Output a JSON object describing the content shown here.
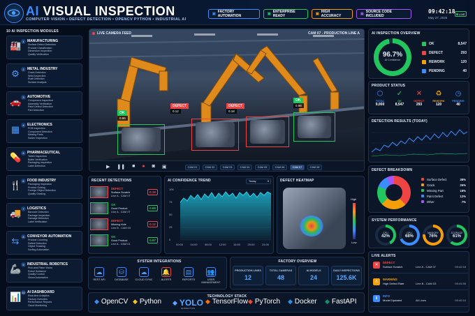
{
  "header": {
    "title_prefix": "AI",
    "title_main": "VISUAL INSPECTION",
    "subtitle": "COMPUTER VISION  •  DEFECT DETECTION  •  OPENCV PYTHON  •  INDUSTRIAL AI",
    "tags": [
      {
        "label": "FACTORY AUTOMATION",
        "color": "#3b8dff"
      },
      {
        "label": "ENTERPRISE READY",
        "color": "#22c55e"
      },
      {
        "label": "HIGH ACCURACY",
        "color": "#f59e0b"
      },
      {
        "label": "SOURCE CODE INCLUDED",
        "color": "#a855f7"
      }
    ],
    "time": "09:42:18",
    "date": "May 27, 2025",
    "live": "LIVE"
  },
  "modules": {
    "title": "10 AI INSPECTION MODULES",
    "items": [
      {
        "num": "1",
        "name": "MANUFACTURING",
        "icon": "factory-icon",
        "items": [
          "Surface Defect Detection",
          "Product Classification",
          "Dimension Inspection",
          "Quality Verification"
        ]
      },
      {
        "num": "2",
        "name": "METAL INDUSTRY",
        "icon": "metal-icon",
        "items": [
          "Crack Detection",
          "Weld Inspection",
          "Rust Detection",
          "Surface Analysis"
        ]
      },
      {
        "num": "3",
        "name": "AUTOMOTIVE",
        "icon": "car-icon",
        "items": [
          "Component Inspection",
          "Assembly Verification",
          "Paint Defect Detection",
          "Part Detection"
        ]
      },
      {
        "num": "4",
        "name": "ELECTRONICS",
        "icon": "chip-icon",
        "items": [
          "PCB Inspection",
          "Component Detection",
          "Missing Parts",
          "Solder Inspection"
        ]
      },
      {
        "num": "5",
        "name": "PHARMACEUTICAL",
        "icon": "pill-icon",
        "items": [
          "Tablet Inspection",
          "Bottle Verification",
          "Packaging Inspection",
          "Label Detection"
        ]
      },
      {
        "num": "6",
        "name": "FOOD INDUSTRY",
        "icon": "food-icon",
        "items": [
          "Packaging Inspection",
          "Product Sorting",
          "Foreign Object Detection",
          "Quality Grading"
        ]
      },
      {
        "num": "7",
        "name": "LOGISTICS",
        "icon": "truck-icon",
        "items": [
          "Barcode Detection",
          "Package Inspection",
          "Damage Detection",
          "Label Verification"
        ]
      },
      {
        "num": "8",
        "name": "CONVEYOR AUTOMATION",
        "icon": "conveyor-icon",
        "items": [
          "Product Counting",
          "Defect Detection",
          "Object Tracking",
          "Sorting Automation"
        ]
      },
      {
        "num": "9",
        "name": "INDUSTRIAL ROBOTICS",
        "icon": "robot-arm-icon",
        "items": [
          "Pick-and-Place Vision",
          "Robot Guidance",
          "Quality Control",
          "Vision Automation"
        ]
      },
      {
        "num": "10",
        "name": "AI DASHBOARD",
        "icon": "dashboard-icon",
        "items": [
          "Real-time Analytics",
          "Factory Overview",
          "Performance Reports",
          "Cloud Monitoring"
        ]
      }
    ]
  },
  "camera": {
    "title": "LIVE CAMERA FEED",
    "cam_label": "CAM 07 - PRODUCTION LINE A",
    "detections": [
      {
        "label": "OK",
        "conf": "0.96",
        "color": "#22c55e"
      },
      {
        "label": "DEFECT",
        "conf": "0.12",
        "color": "#ef4444"
      },
      {
        "label": "DEFECT",
        "conf": "0.18",
        "color": "#ef4444"
      },
      {
        "label": "OK",
        "conf": "0.98",
        "color": "#22c55e"
      }
    ],
    "tabs": [
      "CAM 01",
      "CAM 02",
      "CAM 03",
      "CAM 04",
      "CAM 05",
      "CAM 06",
      "CAM 07",
      "CAM 08"
    ],
    "selected_tab": "CAM 07"
  },
  "overview": {
    "title": "AI INSPECTION OVERVIEW",
    "percent": "96.7%",
    "percent_label": "AI Confidence",
    "rows": [
      {
        "label": "OK",
        "value": "8,547",
        "color": "#22c55e"
      },
      {
        "label": "DEFECT",
        "value": "293",
        "color": "#ef4444"
      },
      {
        "label": "REWORK",
        "value": "120",
        "color": "#f59e0b"
      },
      {
        "label": "PENDING",
        "value": "40",
        "color": "#3b8dff"
      }
    ]
  },
  "product_status": {
    "title": "PRODUCT STATUS",
    "items": [
      {
        "label": "TOTAL",
        "value": "9,000",
        "color": "#3b8dff",
        "icon": "cube-icon"
      },
      {
        "label": "OK",
        "value": "8,547",
        "color": "#22c55e",
        "icon": "check-icon"
      },
      {
        "label": "DEFECT",
        "value": "293",
        "color": "#ef4444",
        "icon": "x-icon"
      },
      {
        "label": "REWORK",
        "value": "120",
        "color": "#f59e0b",
        "icon": "recycle-icon"
      },
      {
        "label": "PENDING",
        "value": "40",
        "color": "#3b8dff",
        "icon": "clock-icon"
      }
    ]
  },
  "detection_results": {
    "title": "DETECTION RESULTS (TODAY)"
  },
  "defect_breakdown": {
    "title": "DEFECT BREAKDOWN",
    "items": [
      {
        "label": "Surface Defect",
        "value": "38%",
        "color": "#ef4444"
      },
      {
        "label": "Crack",
        "value": "25%",
        "color": "#f59e0b"
      },
      {
        "label": "Missing Part",
        "value": "18%",
        "color": "#22c55e"
      },
      {
        "label": "Paint Defect",
        "value": "12%",
        "color": "#3b8dff"
      },
      {
        "label": "Other",
        "value": "7%",
        "color": "#a855f7"
      }
    ]
  },
  "performance": {
    "title": "SYSTEM PERFORMANCE",
    "items": [
      {
        "label": "CPU",
        "value": "42%",
        "color": "#22c55e",
        "pct": 42
      },
      {
        "label": "GPU",
        "value": "68%",
        "color": "#3b8dff",
        "pct": 68
      },
      {
        "label": "MEMORY",
        "value": "76%",
        "color": "#f59e0b",
        "pct": 76
      },
      {
        "label": "STORAGE",
        "value": "61%",
        "color": "#22c55e",
        "pct": 61
      }
    ]
  },
  "alerts": {
    "title": "LIVE ALERTS",
    "items": [
      {
        "level": "DEFECT",
        "desc": "Surface Scratch",
        "line": "Line A - CAM 07",
        "time": "09:42:18",
        "color": "#ef4444"
      },
      {
        "level": "WARNING",
        "desc": "High Defect Rate",
        "line": "Line B - CAM 03",
        "time": "09:41:55",
        "color": "#f59e0b"
      },
      {
        "level": "INFO",
        "desc": "Model Updated",
        "line": "All Lines",
        "time": "09:40:10",
        "color": "#3b8dff"
      }
    ]
  },
  "recent": {
    "title": "RECENT DETECTIONS",
    "items": [
      {
        "status": "DEFECT",
        "desc": "Surface Scratch",
        "line": "Line A - CAM 07",
        "conf": "0.15",
        "color": "#ef4444"
      },
      {
        "status": "OK",
        "desc": "Good Product",
        "line": "Line A - CAM 07",
        "conf": "0.98",
        "color": "#22c55e"
      },
      {
        "status": "DEFECT",
        "desc": "Missing Hole",
        "line": "Line B - CAM 03",
        "conf": "0.12",
        "color": "#ef4444"
      },
      {
        "status": "OK",
        "desc": "Good Product",
        "line": "Line A - CAM 01",
        "conf": "0.97",
        "color": "#22c55e"
      }
    ]
  },
  "trend": {
    "title": "AI CONFIDENCE TREND",
    "range": "Today",
    "y_ticks": [
      "100",
      "75",
      "50",
      "25",
      "0"
    ],
    "x_ticks": [
      "00:00",
      "04:00",
      "08:00",
      "12:00",
      "16:00",
      "20:00",
      "24:00"
    ]
  },
  "heatmap": {
    "title": "DEFECT HEATMAP",
    "high": "High",
    "low": "Low"
  },
  "integrations": {
    "title": "SYSTEM INTEGRATIONS",
    "items": [
      {
        "label": "REST API",
        "icon": "cloud-api-icon"
      },
      {
        "label": "DATABASE",
        "icon": "database-icon"
      },
      {
        "label": "CLOUD SYNC",
        "icon": "cloud-icon"
      },
      {
        "label": "ALERTS",
        "icon": "bell-icon"
      },
      {
        "label": "REPORTS",
        "icon": "report-icon"
      },
      {
        "label": "USER MANAGEMENT",
        "icon": "users-icon"
      }
    ]
  },
  "factory": {
    "title": "FACTORY OVERVIEW",
    "items": [
      {
        "label": "PRODUCTION LINES",
        "value": "12"
      },
      {
        "label": "TOTAL CAMERAS",
        "value": "48"
      },
      {
        "label": "AI MODELS",
        "value": "24"
      },
      {
        "label": "DAILY INSPECTIONS",
        "value": "125.6K"
      }
    ]
  },
  "tech": {
    "title": "TECHNOLOGY STACK",
    "items": [
      "OpenCV",
      "Python",
      "YOLO",
      "TensorFlow",
      "PyTorch",
      "Docker",
      "FastAPI"
    ],
    "yolo_sub": "ULTRALYTICS"
  }
}
